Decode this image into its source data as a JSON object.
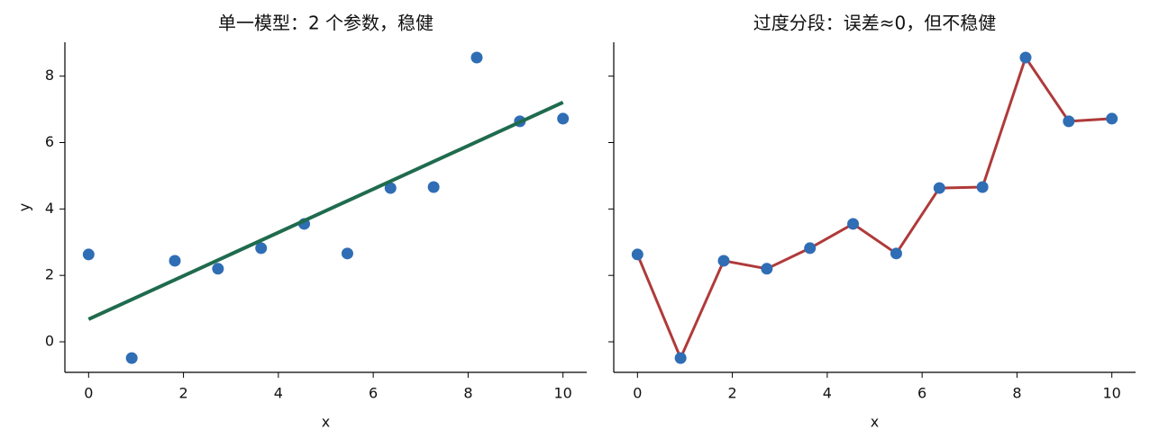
{
  "chart_data": [
    {
      "type": "scatter",
      "title": "单一模型：2 个参数，稳健",
      "x_label": "x",
      "y_label": "y",
      "xlim": [
        -0.5,
        10.5
      ],
      "ylim": [
        -0.92,
        9.02
      ],
      "xticks": [
        0,
        2,
        4,
        6,
        8,
        10
      ],
      "yticks": [
        0,
        2,
        4,
        6,
        8
      ],
      "ytick_labels": true,
      "series": [
        {
          "mode": "markers",
          "marker_color": "#2f6db5",
          "x": [
            0,
            0.909,
            1.818,
            2.727,
            3.636,
            4.545,
            5.455,
            6.364,
            7.273,
            8.182,
            9.091,
            10
          ],
          "values": [
            2.63,
            -0.49,
            2.44,
            2.2,
            2.82,
            3.55,
            2.66,
            4.63,
            4.66,
            8.56,
            6.64,
            6.72
          ]
        },
        {
          "mode": "lines",
          "line_color": "#1f6b4e",
          "line_width": 4,
          "x": [
            0,
            10
          ],
          "values": [
            0.68,
            7.21
          ]
        }
      ]
    },
    {
      "type": "scatter",
      "title": "过度分段：误差≈0，但不稳健",
      "x_label": "x",
      "xlim": [
        -0.5,
        10.5
      ],
      "ylim": [
        -0.92,
        9.02
      ],
      "xticks": [
        0,
        2,
        4,
        6,
        8,
        10
      ],
      "yticks": [
        0,
        2,
        4,
        6,
        8
      ],
      "ytick_labels": false,
      "series": [
        {
          "mode": "lines+markers",
          "line_color": "#b03a3a",
          "line_width": 3,
          "marker_color": "#2f6db5",
          "x": [
            0,
            0.909,
            1.818,
            2.727,
            3.636,
            4.545,
            5.455,
            6.364,
            7.273,
            8.182,
            9.091,
            10
          ],
          "values": [
            2.63,
            -0.49,
            2.44,
            2.2,
            2.82,
            3.55,
            2.66,
            4.63,
            4.66,
            8.56,
            6.64,
            6.72
          ]
        }
      ]
    }
  ]
}
